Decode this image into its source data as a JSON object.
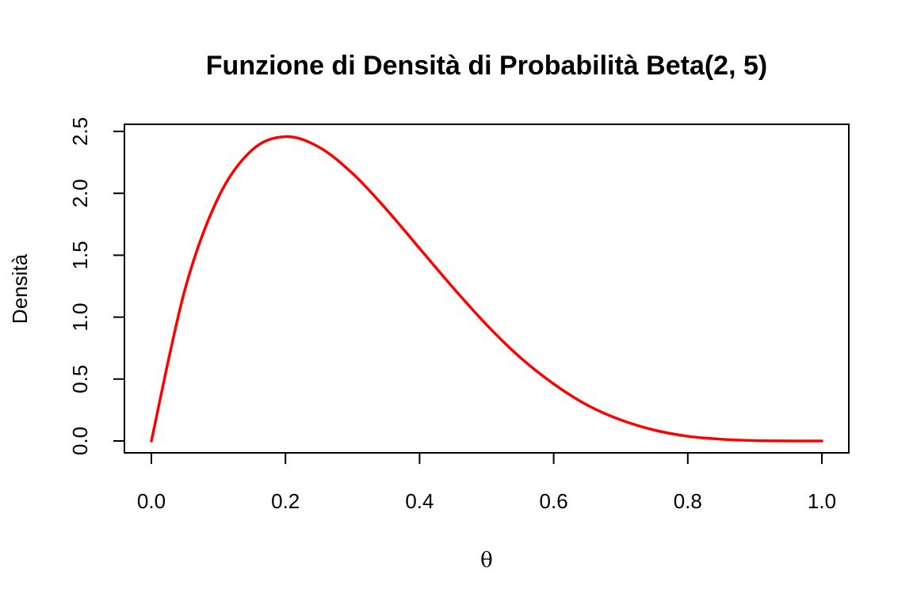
{
  "chart_data": {
    "type": "line",
    "title": "Funzione di Densità di Probabilità Beta(2, 5)",
    "xlabel": "θ",
    "ylabel": "Densità",
    "xlim": [
      0,
      1
    ],
    "ylim": [
      0,
      2.5
    ],
    "grid": false,
    "x_ticks": [
      "0.0",
      "0.2",
      "0.4",
      "0.6",
      "0.8",
      "1.0"
    ],
    "y_ticks": [
      "0.0",
      "0.5",
      "1.0",
      "1.5",
      "2.0",
      "2.5"
    ],
    "series": [
      {
        "color": "#ff0000",
        "x": [
          0.0,
          0.05,
          0.1,
          0.15,
          0.2,
          0.25,
          0.3,
          0.35,
          0.4,
          0.45,
          0.5,
          0.55,
          0.6,
          0.65,
          0.7,
          0.75,
          0.8,
          0.85,
          0.9,
          0.95,
          1.0
        ],
        "y": [
          0.0,
          1.222,
          1.968,
          2.349,
          2.458,
          2.373,
          2.161,
          1.874,
          1.555,
          1.238,
          0.938,
          0.675,
          0.461,
          0.29,
          0.17,
          0.088,
          0.038,
          0.014,
          0.003,
          0.0004,
          0.0
        ]
      }
    ]
  }
}
